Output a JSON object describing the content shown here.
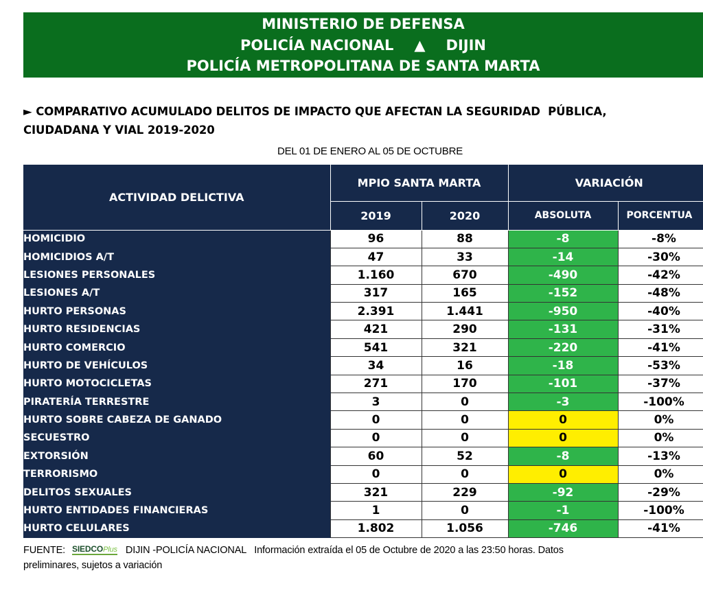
{
  "header": {
    "line1": "MINISTERIO DE DEFENSA",
    "line2_left": "POLICÍA NACIONAL",
    "line2_symbol": "▲",
    "line2_right": "DIJIN",
    "line3": "POLICÍA METROPOLITANA DE SANTA MARTA"
  },
  "subtitle": {
    "line1": "► COMPARATIVO ACUMULADO DELITOS DE IMPACTO QUE AFECTAN LA SEGURIDAD  PÚBLICA,",
    "line2": "CIUDADANA Y VIAL 2019-2020"
  },
  "period": "DEL 01 DE ENERO AL 05 DE OCTUBRE",
  "table": {
    "col_activity": "ACTIVIDAD DELICTIVA",
    "group_mpio": "MPIO SANTA MARTA",
    "group_variation": "VARIACIÓN",
    "col_2019": "2019",
    "col_2020": "2020",
    "col_abs": "ABSOLUTA",
    "col_pct": "PORCENTUA",
    "rows": [
      {
        "label": "HOMICIDIO",
        "y2019": "96",
        "y2020": "88",
        "abs": "-8",
        "pct": "-8%"
      },
      {
        "label": "HOMICIDIOS A/T",
        "y2019": "47",
        "y2020": "33",
        "abs": "-14",
        "pct": "-30%"
      },
      {
        "label": "LESIONES PERSONALES",
        "y2019": "1.160",
        "y2020": "670",
        "abs": "-490",
        "pct": "-42%"
      },
      {
        "label": "LESIONES A/T",
        "y2019": "317",
        "y2020": "165",
        "abs": "-152",
        "pct": "-48%"
      },
      {
        "label": "HURTO PERSONAS",
        "y2019": "2.391",
        "y2020": "1.441",
        "abs": "-950",
        "pct": "-40%"
      },
      {
        "label": "HURTO RESIDENCIAS",
        "y2019": "421",
        "y2020": "290",
        "abs": "-131",
        "pct": "-31%"
      },
      {
        "label": "HURTO COMERCIO",
        "y2019": "541",
        "y2020": "321",
        "abs": "-220",
        "pct": "-41%"
      },
      {
        "label": "HURTO DE VEHÍCULOS",
        "y2019": "34",
        "y2020": "16",
        "abs": "-18",
        "pct": "-53%"
      },
      {
        "label": "HURTO MOTOCICLETAS",
        "y2019": "271",
        "y2020": "170",
        "abs": "-101",
        "pct": "-37%"
      },
      {
        "label": "PIRATERÍA TERRESTRE",
        "y2019": "3",
        "y2020": "0",
        "abs": "-3",
        "pct": "-100%"
      },
      {
        "label": "HURTO SOBRE CABEZA DE GANADO",
        "y2019": "0",
        "y2020": "0",
        "abs": "0",
        "pct": "0%"
      },
      {
        "label": "SECUESTRO",
        "y2019": "0",
        "y2020": "0",
        "abs": "0",
        "pct": "0%"
      },
      {
        "label": "EXTORSIÓN",
        "y2019": "60",
        "y2020": "52",
        "abs": "-8",
        "pct": "-13%"
      },
      {
        "label": "TERRORISMO",
        "y2019": "0",
        "y2020": "0",
        "abs": "0",
        "pct": "0%"
      },
      {
        "label": "DELITOS SEXUALES",
        "y2019": "321",
        "y2020": "229",
        "abs": "-92",
        "pct": "-29%"
      },
      {
        "label": "HURTO ENTIDADES FINANCIERAS",
        "y2019": "1",
        "y2020": "0",
        "abs": "-1",
        "pct": "-100%"
      },
      {
        "label": "HURTO CELULARES",
        "y2019": "1.802",
        "y2020": "1.056",
        "abs": "-746",
        "pct": "-41%"
      }
    ]
  },
  "footer": {
    "source_label": "FUENTE:",
    "logo_main": "SIEDCO",
    "logo_plus": "Plus",
    "source_text": "DIJIN -POLICÍA NACIONAL   Información extraída el 05 de Octubre de 2020 a las 23:50 horas. Datos",
    "source_line2": "preliminares, sujetos a variación"
  },
  "colors": {
    "banner_green": "#0a6e1e",
    "navy": "#16294a",
    "decrease_green": "#2fb44a",
    "no_change_yellow": "#ffee00"
  }
}
